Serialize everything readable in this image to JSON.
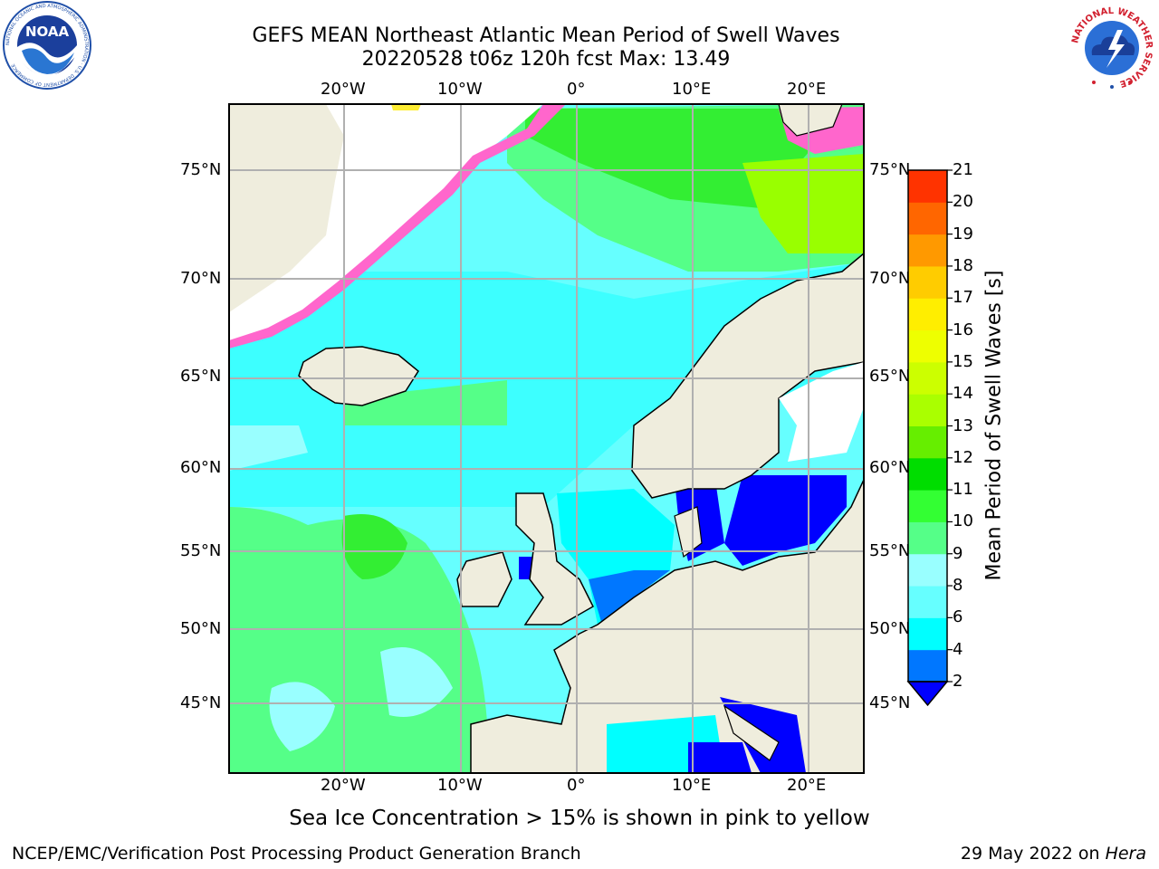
{
  "title": {
    "line1": "GEFS MEAN Northeast Atlantic Mean Period of Swell Waves",
    "line2": "20220528 t06z 120h fcst   Max: 13.49"
  },
  "logos": {
    "left": {
      "icon": "noaa-logo-icon",
      "text": "NOAA",
      "ring_text": "NATIONAL OCEANIC AND ATMOSPHERIC ADMINISTRATION · U.S. DEPARTMENT OF COMMERCE"
    },
    "right": {
      "icon": "national-weather-service-logo-icon",
      "ring_text": "NATIONAL WEATHER SERVICE"
    }
  },
  "map": {
    "lon_ticks": [
      "20°W",
      "10°W",
      "0°",
      "10°E",
      "20°E"
    ],
    "lat_ticks": [
      "75°N",
      "70°N",
      "65°N",
      "60°N",
      "55°N",
      "50°N",
      "45°N"
    ],
    "colors": {
      "land": "#efeddd",
      "grid": "#b0b0b0",
      "ice_pink": "#ff66cc",
      "ice_yellow": "#ffee33"
    }
  },
  "colorbar": {
    "title": "Mean Period of Swell Waves [s]",
    "levels": [
      "2",
      "4",
      "6",
      "8",
      "9",
      "10",
      "11",
      "12",
      "13",
      "14",
      "15",
      "16",
      "17",
      "18",
      "19",
      "20",
      "21"
    ],
    "colors": [
      "#0000ff",
      "#0077ff",
      "#00ffff",
      "#66ffff",
      "#99ffff",
      "#55ff88",
      "#33ff33",
      "#00dd00",
      "#66ee00",
      "#aaff00",
      "#ccff00",
      "#eeff00",
      "#ffee00",
      "#ffcc00",
      "#ff9900",
      "#ff6600",
      "#ff3300",
      "#ff0000"
    ]
  },
  "caption": "Sea Ice Concentration > 15% is shown in pink to yellow",
  "footer": {
    "left": "NCEP/EMC/Verification Post Processing Product Generation Branch",
    "right_prefix": "29 May 2022 on ",
    "right_host": "Hera"
  }
}
